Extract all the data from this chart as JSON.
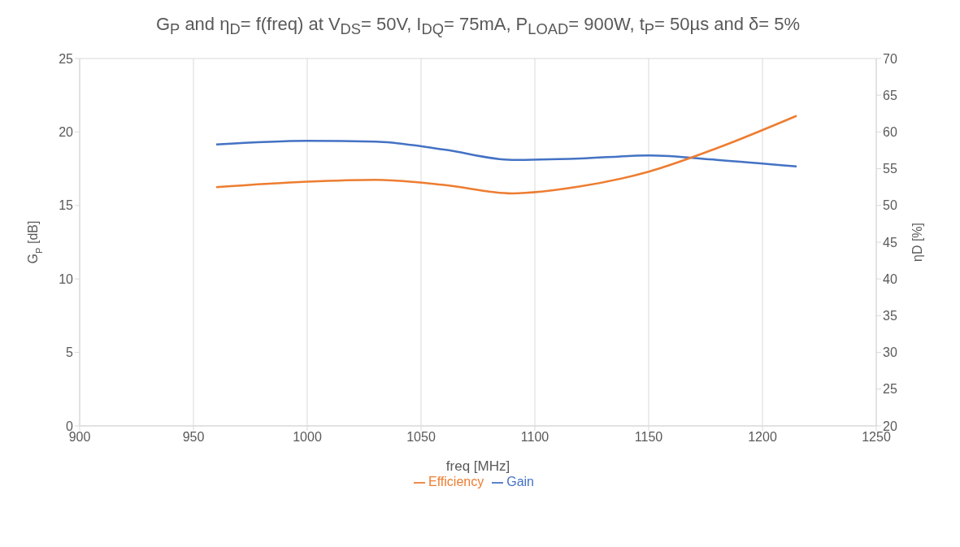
{
  "chart_data": {
    "type": "line",
    "title": "G$_{P}$ and η$_{D}$= f(freq) at V$_{DS}$= 50V, I$_{DQ}$= 75mA, P$_{LOAD}$= 900W, t$_{P}$= 50µs and δ= 5%",
    "xlabel": "freq  [MHz]",
    "ylabel": "G$_{P}$ [dB]",
    "y2label": "ηD [%]",
    "x": [
      960,
      1000,
      1030,
      1060,
      1090,
      1120,
      1150,
      1180,
      1215
    ],
    "series": [
      {
        "name": "Gain",
        "color": "#4472c4",
        "values": [
          19.15,
          19.4,
          19.35,
          18.8,
          18.1,
          18.2,
          18.4,
          18.1,
          17.65
        ]
      },
      {
        "name": "Efficiency",
        "color": "#ed7d31",
        "axis": "y2",
        "values": [
          52.5,
          53.25,
          53.5,
          52.8,
          51.65,
          52.6,
          54.6,
          57.8,
          62.2
        ]
      }
    ],
    "xlim": [
      900,
      1250
    ],
    "xticks": [
      900,
      950,
      1000,
      1050,
      1100,
      1150,
      1200,
      1250
    ],
    "ylim": [
      0,
      25
    ],
    "yticks": [
      0,
      5,
      10,
      15,
      20,
      25
    ],
    "y2lim": [
      20,
      70
    ],
    "y2ticks": [
      20,
      25,
      30,
      35,
      40,
      45,
      50,
      55,
      60,
      65,
      70
    ],
    "grid": true,
    "legend": "bottom",
    "marker": "none",
    "line_style": "solid"
  }
}
